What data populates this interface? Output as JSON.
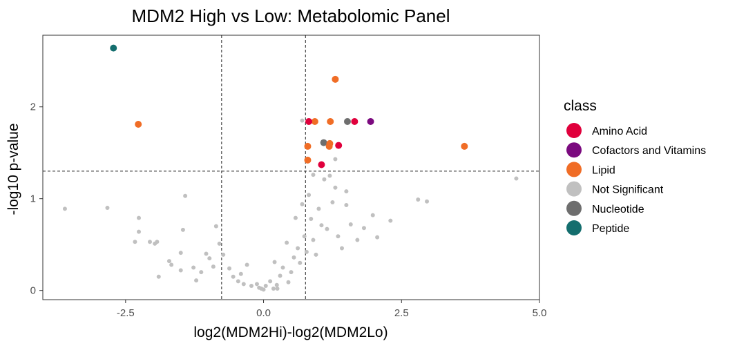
{
  "chart_data": {
    "type": "scatter",
    "title": "MDM2 High vs Low: Metabolomic Panel",
    "xlabel": "log2(MDM2Hi)-log2(MDM2Lo)",
    "ylabel": "-log10 p-value",
    "xlim": [
      -4.0,
      5.0
    ],
    "ylim": [
      -0.1,
      2.78
    ],
    "xticks": [
      -2.5,
      0.0,
      2.5,
      5.0
    ],
    "xtick_labels": [
      "-2.5",
      "0.0",
      "2.5",
      "5.0"
    ],
    "yticks": [
      0,
      1,
      2
    ],
    "ytick_labels": [
      "0",
      "1",
      "2"
    ],
    "thresholds": {
      "x": [
        -0.76,
        0.76
      ],
      "y": 1.3
    },
    "legend": {
      "title": "class",
      "entries": [
        {
          "name": "Amino Acid",
          "color": "#e0003c"
        },
        {
          "name": "Cofactors and Vitamins",
          "color": "#7b0a7f"
        },
        {
          "name": "Lipid",
          "color": "#f06d26"
        },
        {
          "name": "Not Significant",
          "color": "#c0c0c0"
        },
        {
          "name": "Nucleotide",
          "color": "#6e6e6e"
        },
        {
          "name": "Peptide",
          "color": "#146e6e"
        }
      ]
    },
    "series": [
      {
        "name": "Peptide",
        "points": [
          [
            -2.72,
            2.64
          ]
        ]
      },
      {
        "name": "Lipid",
        "points": [
          [
            -2.27,
            1.81
          ],
          [
            1.3,
            2.3
          ],
          [
            0.93,
            1.84
          ],
          [
            1.21,
            1.84
          ],
          [
            0.8,
            1.57
          ],
          [
            1.19,
            1.57
          ],
          [
            1.2,
            1.6
          ],
          [
            0.8,
            1.42
          ],
          [
            3.64,
            1.57
          ]
        ]
      },
      {
        "name": "Amino Acid",
        "points": [
          [
            0.82,
            1.84
          ],
          [
            1.65,
            1.84
          ],
          [
            1.36,
            1.58
          ],
          [
            1.05,
            1.37
          ]
        ]
      },
      {
        "name": "Cofactors and Vitamins",
        "points": [
          [
            1.94,
            1.84
          ]
        ]
      },
      {
        "name": "Nucleotide",
        "points": [
          [
            1.52,
            1.84
          ],
          [
            1.09,
            1.61
          ]
        ]
      },
      {
        "name": "Not Significant",
        "points": [
          [
            -3.6,
            0.89
          ],
          [
            -2.83,
            0.9
          ],
          [
            -2.33,
            0.53
          ],
          [
            -2.26,
            0.64
          ],
          [
            -2.26,
            0.79
          ],
          [
            -2.06,
            0.53
          ],
          [
            -1.97,
            0.51
          ],
          [
            -1.93,
            0.53
          ],
          [
            -1.71,
            0.32
          ],
          [
            -1.67,
            0.28
          ],
          [
            -1.5,
            0.41
          ],
          [
            -1.46,
            0.66
          ],
          [
            -1.42,
            1.03
          ],
          [
            -1.27,
            0.25
          ],
          [
            -1.22,
            0.11
          ],
          [
            -1.13,
            0.2
          ],
          [
            -1.04,
            0.4
          ],
          [
            -0.98,
            0.35
          ],
          [
            -0.91,
            0.26
          ],
          [
            -0.86,
            0.7
          ],
          [
            -0.8,
            0.51
          ],
          [
            -0.73,
            0.39
          ],
          [
            -0.62,
            0.24
          ],
          [
            -0.55,
            0.15
          ],
          [
            -0.46,
            0.1
          ],
          [
            -0.41,
            0.18
          ],
          [
            -0.36,
            0.07
          ],
          [
            -0.3,
            0.28
          ],
          [
            -0.22,
            0.05
          ],
          [
            -0.12,
            0.07
          ],
          [
            -0.04,
            0.02
          ],
          [
            0.04,
            0.05
          ],
          [
            0.12,
            0.1
          ],
          [
            0.18,
            0.02
          ],
          [
            0.24,
            0.06
          ],
          [
            0.3,
            0.16
          ],
          [
            0.35,
            0.25
          ],
          [
            0.42,
            0.52
          ],
          [
            0.45,
            0.09
          ],
          [
            0.5,
            0.2
          ],
          [
            0.55,
            0.36
          ],
          [
            0.58,
            0.79
          ],
          [
            0.62,
            0.46
          ],
          [
            0.66,
            0.3
          ],
          [
            0.7,
            0.94
          ],
          [
            0.74,
            0.59
          ],
          [
            0.78,
            0.42
          ],
          [
            0.82,
            1.04
          ],
          [
            0.86,
            0.78
          ],
          [
            0.9,
            0.55
          ],
          [
            0.95,
            0.39
          ],
          [
            1.0,
            0.89
          ],
          [
            1.05,
            0.71
          ],
          [
            1.1,
            1.21
          ],
          [
            1.15,
            0.67
          ],
          [
            1.2,
            1.25
          ],
          [
            1.25,
            0.96
          ],
          [
            1.3,
            1.12
          ],
          [
            1.35,
            0.59
          ],
          [
            1.42,
            0.46
          ],
          [
            1.5,
            0.93
          ],
          [
            1.58,
            0.72
          ],
          [
            1.7,
            0.55
          ],
          [
            1.82,
            0.68
          ],
          [
            1.98,
            0.82
          ],
          [
            2.06,
            0.58
          ],
          [
            2.3,
            0.76
          ],
          [
            2.8,
            0.99
          ],
          [
            2.96,
            0.97
          ],
          [
            4.58,
            1.22
          ],
          [
            0.7,
            1.85
          ],
          [
            0.9,
            1.26
          ],
          [
            1.3,
            1.43
          ],
          [
            1.5,
            1.08
          ],
          [
            -0.08,
            0.03
          ],
          [
            0.25,
            0.02
          ],
          [
            -1.9,
            0.15
          ],
          [
            -1.5,
            0.22
          ],
          [
            0.2,
            0.31
          ],
          [
            0.0,
            0.01
          ]
        ]
      }
    ]
  }
}
